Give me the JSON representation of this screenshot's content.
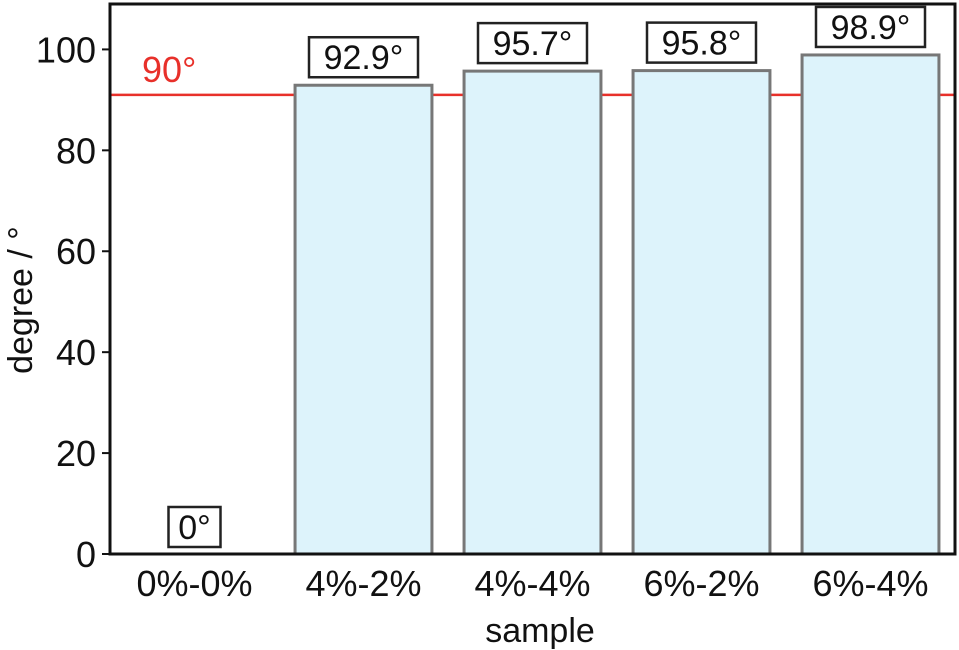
{
  "chart_data": {
    "type": "bar",
    "categories": [
      "0%-0%",
      "4%-2%",
      "4%-4%",
      "6%-2%",
      "6%-4%"
    ],
    "values": [
      0,
      92.9,
      95.7,
      95.8,
      98.9
    ],
    "data_labels": [
      "0°",
      "92.9°",
      "95.7°",
      "95.8°",
      "98.9°"
    ],
    "xlabel": "sample",
    "ylabel": "degree / °",
    "ylim": [
      0,
      109
    ],
    "yticks": [
      0,
      20,
      40,
      60,
      80,
      100
    ],
    "grid": false,
    "reference_line": {
      "value": 91,
      "label": "90°",
      "color": "#e8302a"
    },
    "colors": {
      "bar_fill": "#ddf3fb",
      "bar_stroke": "#777777",
      "axis": "#111111"
    }
  }
}
